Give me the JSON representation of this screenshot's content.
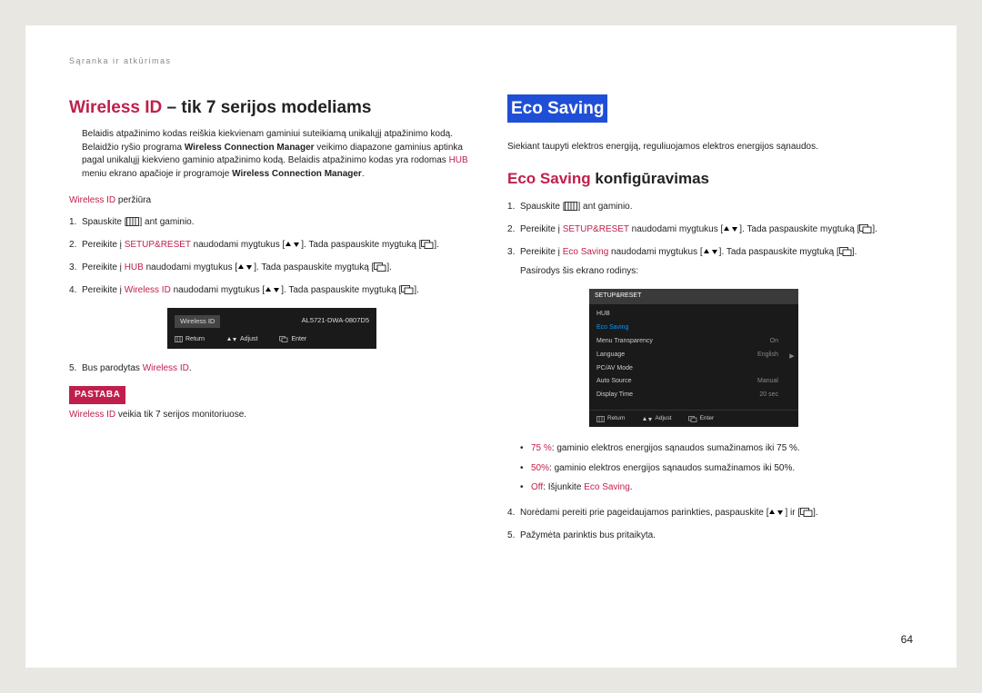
{
  "breadcrumb": "Sąranka ir atkūrimas",
  "page_number": "64",
  "left": {
    "heading_accent": "Wireless ID",
    "heading_rest": " – tik 7 serijos modeliams",
    "intro": "Belaidis atpažinimo kodas reiškia kiekvienam gaminiui suteikiamą unikalųjį atpažinimo kodą. Belaidžio ryšio programa Wireless Connection Manager veikimo diapazone gaminius aptinka pagal unikalųjį kiekvieno gaminio atpažinimo kodą. Belaidis atpažinimo kodas yra rodomas HUB meniu ekrano apačioje ir programoje Wireless Connection Manager.",
    "subhead_accent": "Wireless ID",
    "subhead_rest": " peržiūra",
    "steps": {
      "s1_a": "Spauskite [",
      "s1_b": "] ant gaminio.",
      "s2_a": "Pereikite į ",
      "s2_setup": "SETUP&RESET",
      "s2_b": " naudodami mygtukus [",
      "s2_c": "]. Tada paspauskite mygtuką [",
      "s2_d": "].",
      "s3_a": "Pereikite į ",
      "s3_hub": "HUB",
      "s3_b": " naudodami mygtukus [",
      "s3_c": "]. Tada paspauskite mygtuką [",
      "s3_d": "].",
      "s4_a": "Pereikite į ",
      "s4_wid": "Wireless ID",
      "s4_b": " naudodami mygtukus [",
      "s4_c": "]. Tada paspauskite mygtuką [",
      "s4_d": "].",
      "s5_a": "Bus parodytas ",
      "s5_wid": "Wireless ID",
      "s5_b": "."
    },
    "osd": {
      "label": "Wireless ID",
      "value": "AL5721-DWA-0807D5",
      "return": "Return",
      "adjust": "Adjust",
      "enter": "Enter"
    },
    "note_label": "PASTABA",
    "note_accent": "Wireless ID",
    "note_rest": " veikia tik 7 serijos monitoriuose."
  },
  "right": {
    "badge": "Eco Saving",
    "intro": "Siekiant taupyti elektros energiją, reguliuojamos elektros energijos sąnaudos.",
    "heading_accent": "Eco Saving",
    "heading_rest": " konfigūravimas",
    "steps": {
      "s1_a": "Spauskite [",
      "s1_b": "] ant gaminio.",
      "s2_a": "Pereikite į ",
      "s2_setup": "SETUP&RESET",
      "s2_b": " naudodami mygtukus [",
      "s2_c": "]. Tada paspauskite mygtuką [",
      "s2_d": "].",
      "s3_a": "Pereikite į ",
      "s3_eco": "Eco Saving",
      "s3_b": " naudodami mygtukus [",
      "s3_c": "]. Tada paspauskite mygtuką [",
      "s3_d": "].",
      "s3_e": "Pasirodys šis ekrano rodinys:",
      "s4_a": "Norėdami pereiti prie pageidaujamos parinkties, paspauskite [",
      "s4_b": "] ir [",
      "s4_c": "].",
      "s5": "Pažymėta parinktis bus pritaikyta."
    },
    "bullets": {
      "b1_a": "75 %",
      "b1_b": ": gaminio elektros energijos sąnaudos sumažinamos iki 75 %.",
      "b2_a": "50%",
      "b2_b": ": gaminio elektros energijos sąnaudos sumažinamos iki 50%.",
      "b3_a": "Off",
      "b3_b": ": Išjunkite ",
      "b3_c": "Eco Saving",
      "b3_d": "."
    },
    "osd": {
      "title": "SETUP&RESET",
      "items": [
        {
          "l": "HUB",
          "r": ""
        },
        {
          "l": "Eco Saving",
          "r": "",
          "sel": true
        },
        {
          "l": "Menu Transparency",
          "r": "On"
        },
        {
          "l": "Language",
          "r": "English"
        },
        {
          "l": "PC/AV Mode",
          "r": ""
        },
        {
          "l": "Auto Source",
          "r": "Manual"
        },
        {
          "l": "Display Time",
          "r": "20 sec"
        }
      ],
      "return": "Return",
      "adjust": "Adjust",
      "enter": "Enter"
    }
  }
}
